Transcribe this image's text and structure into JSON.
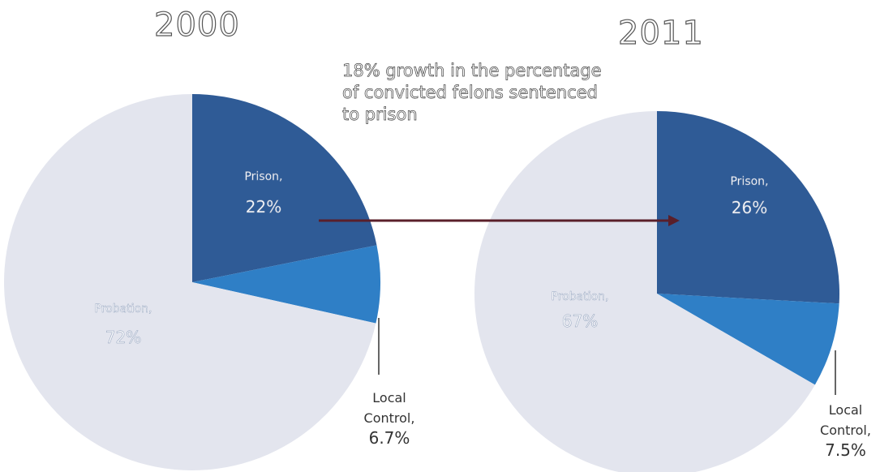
{
  "chart_data": [
    {
      "type": "pie",
      "title": "2000",
      "slices": [
        {
          "label": "Prison",
          "value": 22,
          "display": "22%",
          "color": "#2f5b96"
        },
        {
          "label": "Local Control",
          "value": 6.7,
          "display": "6.7%",
          "color": "#2f7fc6"
        },
        {
          "label": "Probation",
          "value": 72,
          "display": "72%",
          "color": "#e3e5ee"
        }
      ]
    },
    {
      "type": "pie",
      "title": "2011",
      "slices": [
        {
          "label": "Prison",
          "value": 26,
          "display": "26%",
          "color": "#2f5b96"
        },
        {
          "label": "Local Control",
          "value": 7.5,
          "display": "7.5%",
          "color": "#2f7fc6"
        },
        {
          "label": "Probation",
          "value": 67,
          "display": "67%",
          "color": "#e3e5ee"
        }
      ]
    }
  ],
  "annotation": {
    "text": "18% growth in the percentage of convicted felons sentenced to prison",
    "arrow_color": "#5a1f2a"
  },
  "local_control": {
    "line1": "Local",
    "line2": "Control,"
  }
}
